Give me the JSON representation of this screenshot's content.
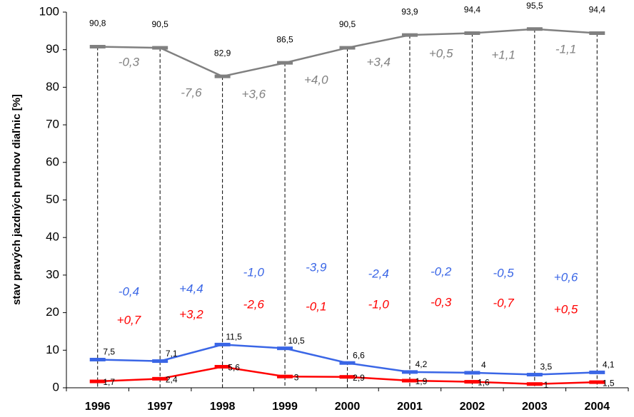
{
  "chart_data": {
    "type": "line",
    "ylabel": "stav pravých jazdných pruhov diaľnic [%]",
    "categories": [
      "1996",
      "1997",
      "1998",
      "1999",
      "2000",
      "2001",
      "2002",
      "2003",
      "2004"
    ],
    "series": [
      {
        "color": "#808080",
        "values": [
          90.8,
          90.5,
          82.9,
          86.5,
          90.5,
          93.9,
          94.4,
          95.5,
          94.4
        ],
        "value_labels": [
          "90,8",
          "90,5",
          "82,9",
          "86,5",
          "90,5",
          "93,9",
          "94,4",
          "95,5",
          "94,4"
        ],
        "change_labels": [
          "-0,3",
          "-7,6",
          "+3,6",
          "+4,0",
          "+3,4",
          "+0,5",
          "+1,1",
          "-1,1"
        ]
      },
      {
        "color": "#3a66e6",
        "values": [
          7.5,
          7.1,
          11.5,
          10.5,
          6.6,
          4.2,
          4,
          3.5,
          4.1
        ],
        "value_labels": [
          "7,5",
          "7,1",
          "11,5",
          "10,5",
          "6,6",
          "4,2",
          "4",
          "3,5",
          "4,1"
        ],
        "change_labels": [
          "-0,4",
          "+4,4",
          "-1,0",
          "-3,9",
          "-2,4",
          "-0,2",
          "-0,5",
          "+0,6"
        ]
      },
      {
        "color": "#ff0000",
        "values": [
          1.7,
          2.4,
          5.6,
          3,
          2.9,
          1.9,
          1.6,
          1,
          1.5
        ],
        "value_labels": [
          "1,7",
          "2,4",
          "5,6",
          "3",
          "2,9",
          "1,9",
          "1,6",
          "1",
          "1,5"
        ],
        "change_labels": [
          "+0,7",
          "+3,2",
          "-2,6",
          "-0,1",
          "-1,0",
          "-0,3",
          "-0,7",
          "+0,5"
        ]
      }
    ],
    "ylim": [
      0,
      100
    ],
    "yticks": [
      0,
      10,
      20,
      30,
      40,
      50,
      60,
      70,
      80,
      90,
      100
    ]
  }
}
